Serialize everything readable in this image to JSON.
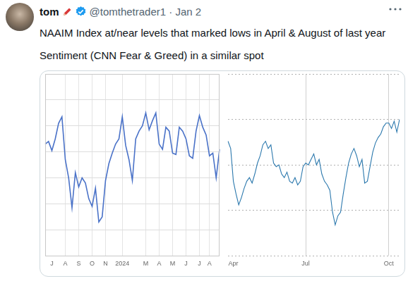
{
  "post": {
    "name": "tom",
    "byline": "@tomthetrader1 · Jan 2",
    "text": [
      "NAAIM Index at/near levels that marked lows in April & August of last year",
      "Sentiment (CNN Fear & Greed) in a similar spot"
    ]
  },
  "chart_data": [
    {
      "type": "line",
      "categories": [
        null,
        null,
        "J",
        null,
        null,
        null,
        "A",
        null,
        null,
        null,
        "S",
        null,
        null,
        null,
        "O",
        null,
        null,
        null,
        "N",
        null,
        null,
        null,
        null,
        "2024",
        null,
        null,
        null,
        null,
        null,
        null,
        "M",
        null,
        null,
        null,
        "A",
        null,
        null,
        null,
        "M",
        null,
        null,
        null,
        "J",
        null,
        null,
        null,
        "J",
        null,
        null,
        "A",
        null,
        null,
        null
      ],
      "values": [
        86,
        88,
        81,
        90,
        102,
        107,
        74,
        60,
        37,
        64,
        53,
        60,
        56,
        44,
        38,
        52,
        26,
        30,
        58,
        71,
        79,
        86,
        90,
        107,
        85,
        74,
        58,
        90,
        96,
        100,
        110,
        97,
        104,
        110,
        86,
        82,
        99,
        96,
        79,
        78,
        99,
        96,
        90,
        77,
        75,
        96,
        108,
        99,
        93,
        77,
        79,
        60,
        82
      ],
      "color": "#4a72c8",
      "ylim": [
        0,
        140
      ],
      "yticks": [
        0,
        20,
        40,
        60,
        80,
        100,
        120,
        140
      ],
      "grid": true,
      "tick_labels": "x"
    },
    {
      "type": "line",
      "categories": [
        null,
        null,
        "Apr",
        null,
        null,
        null,
        null,
        null,
        null,
        null,
        null,
        null,
        null,
        null,
        null,
        null,
        null,
        null,
        null,
        null,
        null,
        null,
        null,
        null,
        null,
        null,
        null,
        null,
        null,
        "Jul",
        null,
        null,
        null,
        null,
        null,
        null,
        null,
        null,
        null,
        null,
        null,
        null,
        null,
        null,
        null,
        null,
        null,
        null,
        null,
        null,
        null,
        null,
        null,
        null,
        null,
        null,
        null,
        null,
        null,
        null,
        "Oct",
        null,
        null,
        null,
        null
      ],
      "values": [
        63,
        59,
        41,
        34,
        28,
        32,
        37,
        41,
        43,
        40,
        45,
        51,
        55,
        61,
        63,
        59,
        61,
        51,
        49,
        50,
        45,
        43,
        46,
        41,
        40,
        43,
        39,
        41,
        49,
        51,
        50,
        53,
        56,
        50,
        53,
        45,
        41,
        39,
        36,
        24,
        17,
        22,
        24,
        34,
        43,
        51,
        56,
        59,
        55,
        49,
        53,
        40,
        41,
        49,
        57,
        62,
        65,
        67,
        71,
        73,
        73,
        70,
        74,
        68,
        75
      ],
      "color": "#2b78ad",
      "ylim": [
        0,
        100
      ],
      "yticks": [
        0,
        25,
        50,
        75,
        100
      ],
      "grid": true,
      "tick_labels": "x"
    }
  ]
}
